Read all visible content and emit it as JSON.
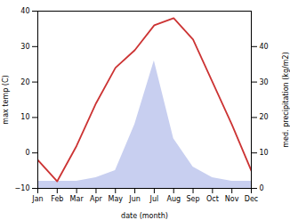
{
  "chart_data": {
    "type": "line",
    "categories": [
      "Jan",
      "Feb",
      "Mar",
      "Apr",
      "May",
      "Jun",
      "Jul",
      "Aug",
      "Sep",
      "Oct",
      "Nov",
      "Dec"
    ],
    "xlabel": "date (month)",
    "ylabel": "max temp (C)",
    "y2label": "med. precipitation (kg/m2)",
    "ylim": [
      -10,
      40
    ],
    "yticks": [
      -10,
      0,
      10,
      20,
      30,
      40
    ],
    "y2lim": [
      0,
      50
    ],
    "y2ticks": [
      0,
      10,
      20,
      30,
      40
    ],
    "grid": false,
    "series": [
      {
        "type": "area",
        "axis": "y2",
        "color": "#c8cff0",
        "values": [
          2,
          2,
          2,
          3,
          5,
          18,
          36,
          14,
          6,
          3,
          2,
          2
        ]
      },
      {
        "type": "line",
        "color": "#cc3333",
        "values": [
          -2,
          -8,
          2,
          14,
          24,
          29,
          36,
          38,
          32,
          20,
          8,
          -5
        ]
      }
    ]
  }
}
